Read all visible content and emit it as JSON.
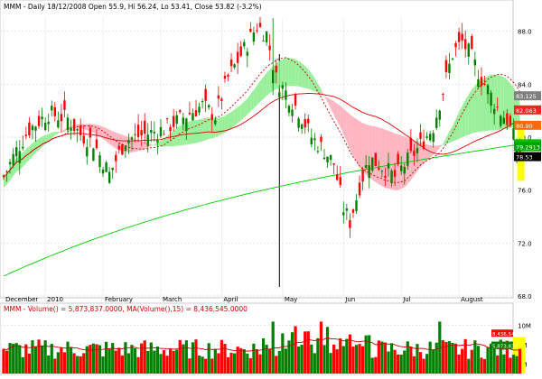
{
  "chart_data": [
    {
      "type": "candlestick",
      "title": "MMM - Daily 18/12/2008 Open 55.9, Hi 56.24, Lo 53.41, Close 53.82 (-3.2%)",
      "ylim": [
        68,
        89
      ],
      "yticks": [
        88.0,
        84.0,
        80.0,
        76.0,
        72.0,
        68.0
      ],
      "x_labels": [
        {
          "label": "December",
          "i": 0
        },
        {
          "label": "2010",
          "i": 13
        },
        {
          "label": "February",
          "i": 31
        },
        {
          "label": "March",
          "i": 49
        },
        {
          "label": "April",
          "i": 68
        },
        {
          "label": "May",
          "i": 87
        },
        {
          "label": "Jun",
          "i": 106
        },
        {
          "label": "Jul",
          "i": 124
        },
        {
          "label": "August",
          "i": 142
        }
      ],
      "right_markers": [
        {
          "label": "83.125",
          "value": 83.125,
          "color": "#808080"
        },
        {
          "label": "82.063",
          "value": 82.06,
          "color": "#ff2020"
        },
        {
          "label": "80.90",
          "value": 80.9,
          "color": "#ff6a00"
        },
        {
          "label": "79.50",
          "value": 79.5,
          "color": "#00c000"
        },
        {
          "label": "79.2913",
          "value": 79.29,
          "color": "#00a000"
        },
        {
          "label": "78.53",
          "value": 78.53,
          "color": "#000000"
        }
      ],
      "cloud_bullish_color": "#9af09a",
      "cloud_bearish_color": "#ffb6c1",
      "candle_up_color": "#008000",
      "candle_down_color": "#ff0000",
      "highlight_color": "#ffff00"
    },
    {
      "type": "bar",
      "title": "MMM - Volume() = 5,873,837.0000, MA(Volume(),15) = 8,436,545.0000",
      "ylim": [
        0,
        12
      ],
      "yticks": [
        {
          "label": "10M",
          "value": 10
        },
        {
          "label": "6M",
          "value": 6
        },
        {
          "label": "2M",
          "value": 2
        }
      ],
      "markers": [
        {
          "label": "8,436,545",
          "value": 8.4,
          "color": "#ff0000"
        },
        {
          "label": "5,873,837",
          "value": 5.9,
          "color": "#008000"
        }
      ]
    }
  ]
}
